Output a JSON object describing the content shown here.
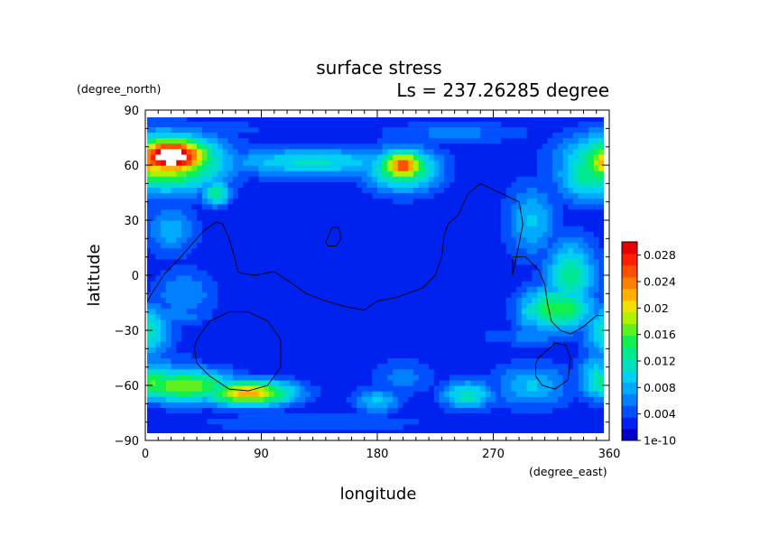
{
  "chart_data": {
    "type": "heatmap",
    "title": "surface stress",
    "subtitle": "Ls = 237.26285 degree",
    "xlabel": "longitude",
    "ylabel": "latitude",
    "x_units": "(degree_east)",
    "y_units": "(degree_north)",
    "xlim": [
      0,
      360
    ],
    "ylim": [
      -90,
      90
    ],
    "x_ticks": [
      "0",
      "90",
      "180",
      "270",
      "360"
    ],
    "y_ticks": [
      "90",
      "60",
      "30",
      "0",
      "−30",
      "−60",
      "−90"
    ],
    "x_tick_values": [
      0,
      90,
      180,
      270,
      360
    ],
    "y_tick_values": [
      90,
      60,
      30,
      0,
      -30,
      -60,
      -90
    ],
    "colorbar": {
      "labels": [
        "0.028",
        "0.024",
        "0.02",
        "0.016",
        "0.012",
        "0.008",
        "0.004",
        "1e-10"
      ],
      "values": [
        0.028,
        0.024,
        0.02,
        0.016,
        0.012,
        0.008,
        0.004,
        0.0
      ],
      "min": 0.0,
      "max": 0.03,
      "colors": [
        "#0000c8",
        "#0022ee",
        "#0050ff",
        "#0080ff",
        "#00aaff",
        "#00d0f0",
        "#00e0c0",
        "#00e890",
        "#10f050",
        "#60f020",
        "#b0f000",
        "#f0e000",
        "#ffb000",
        "#ff8000",
        "#ff5000",
        "#ff2000",
        "#e80000"
      ]
    },
    "features": [
      {
        "lon": 20,
        "lat": 65,
        "rx": 30,
        "ry": 10,
        "value": 0.034
      },
      {
        "lon": 15,
        "lat": 62,
        "rx": 45,
        "ry": 15,
        "value": 0.022
      },
      {
        "lon": 200,
        "lat": 60,
        "rx": 18,
        "ry": 8,
        "value": 0.026
      },
      {
        "lon": 200,
        "lat": 58,
        "rx": 28,
        "ry": 12,
        "value": 0.016
      },
      {
        "lon": 130,
        "lat": 62,
        "rx": 70,
        "ry": 8,
        "value": 0.011
      },
      {
        "lon": 360,
        "lat": 62,
        "rx": 18,
        "ry": 10,
        "value": 0.024
      },
      {
        "lon": 345,
        "lat": 55,
        "rx": 25,
        "ry": 14,
        "value": 0.014
      },
      {
        "lon": 55,
        "lat": 45,
        "rx": 12,
        "ry": 7,
        "value": 0.013
      },
      {
        "lon": 20,
        "lat": 25,
        "rx": 20,
        "ry": 14,
        "value": 0.008
      },
      {
        "lon": 30,
        "lat": -10,
        "rx": 25,
        "ry": 14,
        "value": 0.007
      },
      {
        "lon": 300,
        "lat": 30,
        "rx": 20,
        "ry": 20,
        "value": 0.009
      },
      {
        "lon": 320,
        "lat": -18,
        "rx": 28,
        "ry": 12,
        "value": 0.016
      },
      {
        "lon": 330,
        "lat": 0,
        "rx": 20,
        "ry": 20,
        "value": 0.013
      },
      {
        "lon": 300,
        "lat": -20,
        "rx": 12,
        "ry": 10,
        "value": 0.011
      },
      {
        "lon": 20,
        "lat": -22,
        "rx": 30,
        "ry": 5,
        "value": 0.007
      },
      {
        "lon": 30,
        "lat": -60,
        "rx": 40,
        "ry": 9,
        "value": 0.018
      },
      {
        "lon": 80,
        "lat": -64,
        "rx": 35,
        "ry": 7,
        "value": 0.022
      },
      {
        "lon": 5,
        "lat": -58,
        "rx": 25,
        "ry": 10,
        "value": 0.016
      },
      {
        "lon": 10,
        "lat": -48,
        "rx": 30,
        "ry": 8,
        "value": 0.006
      },
      {
        "lon": 180,
        "lat": -68,
        "rx": 18,
        "ry": 7,
        "value": 0.009
      },
      {
        "lon": 250,
        "lat": -65,
        "rx": 20,
        "ry": 8,
        "value": 0.012
      },
      {
        "lon": 200,
        "lat": -55,
        "rx": 25,
        "ry": 10,
        "value": 0.006
      },
      {
        "lon": 300,
        "lat": -60,
        "rx": 30,
        "ry": 12,
        "value": 0.009
      },
      {
        "lon": 350,
        "lat": -55,
        "rx": 15,
        "ry": 12,
        "value": 0.011
      },
      {
        "lon": 300,
        "lat": -33,
        "rx": 40,
        "ry": 5,
        "value": 0.006
      },
      {
        "lon": 360,
        "lat": -30,
        "rx": 20,
        "ry": 15,
        "value": 0.012
      },
      {
        "lon": 130,
        "lat": -80,
        "rx": 100,
        "ry": 6,
        "value": 0.005
      },
      {
        "lon": 40,
        "lat": 80,
        "rx": 60,
        "ry": 5,
        "value": 0.005
      },
      {
        "lon": 240,
        "lat": 78,
        "rx": 60,
        "ry": 6,
        "value": 0.006
      }
    ],
    "background_value": 0.002,
    "contours": [
      {
        "lon": [
          0,
          5,
          15,
          25,
          35,
          45,
          55,
          60,
          65,
          70,
          72,
          75,
          85,
          100,
          115,
          125,
          140,
          155,
          170,
          180,
          195,
          215,
          225,
          230,
          232,
          235,
          243,
          250,
          260,
          275,
          290,
          293,
          288,
          285,
          285,
          295,
          305,
          310,
          312,
          315,
          322,
          330,
          340,
          350,
          360
        ],
        "lat": [
          -16,
          -10,
          1,
          8,
          16,
          24,
          29,
          28,
          20,
          8,
          2,
          1,
          0,
          2,
          -5,
          -10,
          -14,
          -17,
          -19,
          -14,
          -12,
          -7,
          0,
          10,
          22,
          28,
          33,
          44,
          50,
          45,
          40,
          28,
          10,
          0,
          10,
          10,
          3,
          -5,
          -15,
          -25,
          -30,
          -32,
          -28,
          -22,
          -22
        ]
      },
      {
        "lon": [
          140,
          145,
          150,
          152,
          148,
          142,
          140
        ],
        "lat": [
          18,
          26,
          26,
          20,
          16,
          16,
          18
        ]
      },
      {
        "lon": [
          40,
          50,
          65,
          80,
          95,
          105,
          105,
          95,
          80,
          65,
          50,
          40,
          38,
          40
        ],
        "lat": [
          -35,
          -25,
          -20,
          -20,
          -25,
          -35,
          -50,
          -60,
          -63,
          -62,
          -55,
          -48,
          -40,
          -35
        ]
      },
      {
        "lon": [
          305,
          318,
          326,
          330,
          328,
          318,
          308,
          303,
          303,
          305
        ],
        "lat": [
          -45,
          -37,
          -38,
          -45,
          -57,
          -62,
          -60,
          -55,
          -48,
          -45
        ]
      }
    ]
  }
}
